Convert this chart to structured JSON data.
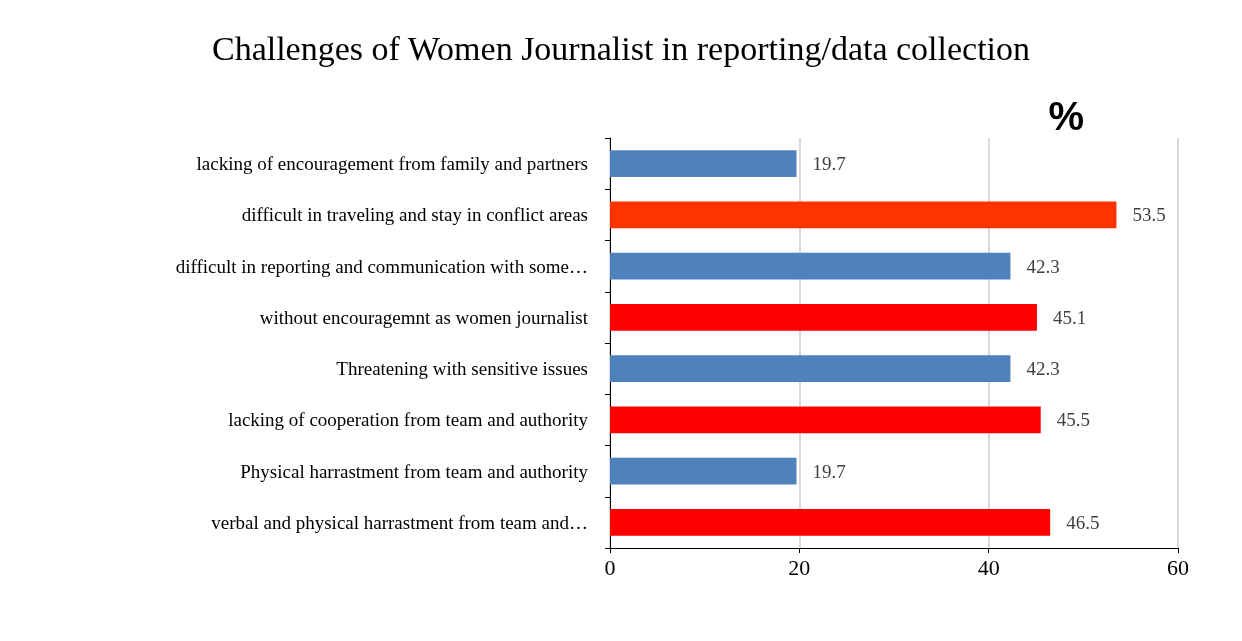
{
  "chart_data": {
    "type": "bar",
    "orientation": "horizontal",
    "title": "Challenges of Women Journalist in reporting/data collection",
    "xlabel": "%",
    "categories": [
      "lacking of encouragement from family and partners",
      "difficult in traveling and stay in conflict areas",
      "difficult in reporting and communication with some…",
      "without encouragemnt as women journalist",
      "Threatening with sensitive issues",
      "lacking of cooperation from team and authority",
      "Physical harrastment from team and authority",
      "verbal and physical harrastment from team and…"
    ],
    "values": [
      19.7,
      53.5,
      42.3,
      45.1,
      42.3,
      45.5,
      19.7,
      46.5
    ],
    "colors": [
      "#4f81bd",
      "#ff3300",
      "#4f81bd",
      "#ff0000",
      "#4f81bd",
      "#ff0000",
      "#4f81bd",
      "#ff0000"
    ],
    "xlim": [
      0,
      60
    ],
    "xticks": [
      0,
      20,
      40,
      60
    ],
    "grid": "x",
    "data_labels": true
  }
}
